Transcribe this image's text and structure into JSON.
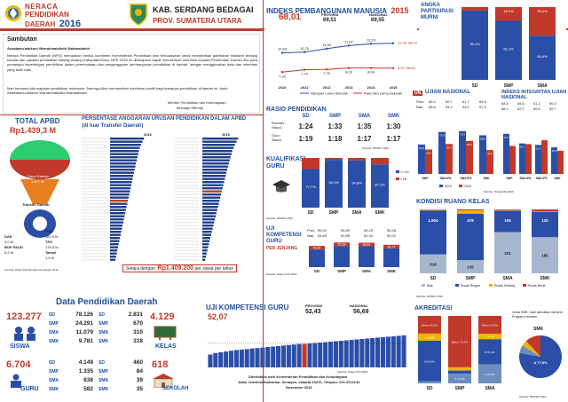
{
  "header": {
    "logo_text": "NERACA PENDIDIKAN DAERAH 2016",
    "logo_line1": "NERACA",
    "logo_line2": "PENDIDIKAN",
    "logo_line3": "DAERAH",
    "logo_year": "2016",
    "region": "KAB. SERDANG BEDAGAI",
    "province": "PROV. SUMATERA UTARA"
  },
  "sambutan": {
    "title": "Sambutan",
    "greeting": "Assalamu'alaikum Warrahmatullahi Wabarakatuh",
    "body": "Neraca Pendidikan Daerah (NPD) merupakan bentuk komitmen Kementerian Pendidikan dan Kebudayaan untuk memberikan gambaran mutakhir tentang kondisi dan capaian pendidikan masing-masing Kabupaten/Kota. NPD 2016 ini diharapkan dapat memberikan informasi kepada Pemerintah Daerah dan para pemangku kepentingan pendidikan dalam perencanaan dan penganggaran pembangunan pendidikan di daerah, dengan menggunakan data dan informasi yang lebih baik.",
    "closing": "Mari bersama kita majukan pendidikan Indonesia. Semoga Allah memberikan kontribusi positif bagi kemajuan pendidikan di daerah ini. Amin. Wassalamu'alaikum Warrahmatullahi Wabarakatuh",
    "signature_title": "Menteri Pendidikan dan Kebudayaan",
    "signature_name": "Muhadjir Effendy"
  },
  "ipm": {
    "title": "INDEKS PEMBANGUNAN MANUSIA",
    "year": "2015",
    "local_value": "68,01",
    "prov_label": "PROVINSI",
    "prov_value": "69,51",
    "nat_label": "NASIONAL",
    "nat_value": "69,55",
    "legend_harapan": "Harapan Lama Sekolah",
    "legend_rata": "Rata-rata Lama Sekolah",
    "target_harapan": "12,28 Tahun",
    "target_rata": "8,00 Tahun",
    "source": "Sumber: BPS 2015",
    "chart_data": {
      "type": "line",
      "x": [
        "2010",
        "2011",
        "2012",
        "2013",
        "2014",
        "2015"
      ],
      "series": [
        {
          "name": "Harapan Lama Sekolah",
          "values": [
            10.63,
            10.75,
            11.35,
            11.87,
            12.19,
            12.28
          ]
        },
        {
          "name": "Rata-rata Lama Sekolah",
          "values": [
            7.33,
            7.74,
            7.79,
            8.03,
            8.04,
            8.0
          ]
        }
      ],
      "labels_top": [
        "10,63",
        "10,75",
        "11,35",
        "11,87",
        "12,19"
      ],
      "labels_bottom": [
        "7,33",
        "7,74",
        "7,79",
        "8,03",
        "8,04"
      ]
    }
  },
  "apm": {
    "title": "ANGKA PARTISIPASI MURNI",
    "source": "Sumber: PDSPK 2016",
    "chart_data": {
      "type": "bar",
      "categories": [
        "SD",
        "SMP",
        "SMA"
      ],
      "series": [
        {
          "name": "APM",
          "values": [
            95.2,
            81.1,
            60.6
          ],
          "color": "#2b4fa8"
        },
        {
          "name": "Sisa",
          "values": [
            4.8,
            18.9,
            39.4
          ],
          "color": "#c0392b"
        }
      ],
      "labels": [
        "95,2%",
        "81,1%",
        "60,6%"
      ],
      "top_labels": [
        "",
        "18,9%",
        "39,4%"
      ]
    }
  },
  "total_apbd": {
    "title": "TOTAL APBD",
    "value": "Rp1.439,3 M",
    "transfer_label": "Transfer Daerah",
    "pad_label": "Dana Daerah",
    "pad_value": "178,7 M",
    "dak_label": "DAK",
    "dak_value": "0,0 M",
    "bop_label": "BOP PAUD",
    "bop_value": "6,2 M",
    "dau_label": "DAU",
    "dau_value": "181,6 M",
    "tpg_label": "TPG",
    "tpg_value": "176,5 M",
    "tamsil_label": "Tamsil",
    "tamsil_value": "1,5 M",
    "transfer_value": "385,9 M",
    "source": "Sumber: Ditjen Perimbangan Keuangan 2016"
  },
  "anggaran": {
    "title": "PERSENTASE ANGGARAN URUSAN PENDIDIKAN DALAM APBD",
    "subtitle": "(di luar Transfer Daerah)",
    "year_left": "2016",
    "year_right": "2015",
    "footer_pre": "Setara dengan:",
    "footer_value": "Rp1.409.200",
    "footer_post": "per siswa per tahun",
    "left_values": [
      28.7,
      27.4,
      26.2,
      25.1,
      24.3,
      23.8,
      23.2,
      22.6,
      21.9,
      21.4,
      20.8,
      20.2,
      19.6,
      19.1,
      18.5,
      18.0,
      17.4,
      16.9,
      16.3,
      15.7,
      15.1,
      14.6,
      14.0,
      13.4,
      12.9,
      12.3,
      11.7,
      11.2,
      10.6,
      10.1,
      9.5,
      9.0,
      8.4,
      7.9,
      7.3,
      6.8,
      6.2,
      5.7,
      5.1,
      4.5
    ],
    "right_values": [
      30.2,
      28.9,
      27.5,
      26.4,
      25.3,
      24.6,
      23.9,
      23.1,
      22.4,
      21.7,
      21.0,
      20.3,
      19.7,
      19.0,
      18.4,
      17.7,
      17.1,
      16.4,
      15.8,
      15.2,
      14.5,
      13.9,
      13.2,
      12.6,
      11.9,
      11.3,
      10.7,
      10.0,
      9.4,
      8.7,
      8.1,
      7.5,
      6.8,
      6.2,
      5.5,
      4.9,
      4.3,
      3.6,
      3.0,
      2.4
    ],
    "highlight_index_left": 20,
    "highlight_index_right": 17
  },
  "rasio": {
    "title": "RASIO PENDIDIKAN",
    "row1_label": "Rombel : Siswa",
    "row2_label": "Guru : Siswa",
    "levels": [
      "SD",
      "SMP",
      "SMA",
      "SMK"
    ],
    "row1": [
      "1:24",
      "1:33",
      "1:35",
      "1:30"
    ],
    "row2": [
      "1:19",
      "1:18",
      "1:17",
      "1:17"
    ],
    "source": "Sumber: PDSPK 2016"
  },
  "kualifikasi": {
    "title": "KUALIFIKASI GURU",
    "source": "Sumber: PDSPK 2016",
    "legend_lt": "< D4",
    "legend_ge": ">= D4",
    "chart_data": {
      "type": "bar",
      "categories": [
        "SD",
        "SMP",
        "SMA",
        "SMK"
      ],
      "series": [
        {
          "name": ">= D4",
          "values": [
            77.7,
            96.1,
            94.8,
            87.1
          ]
        },
        {
          "name": "< D4",
          "values": [
            22.3,
            3.9,
            5.2,
            12.9
          ]
        }
      ],
      "labels": [
        "77,7%",
        "96,1%",
        "94,8%",
        "87,1%"
      ]
    }
  },
  "ukg_jenjang": {
    "title": "UJI KOMPETENSI GURU",
    "subtitle": "PER JENJANG",
    "prov_label": "Prov.",
    "nas_label": "Nas.",
    "prov_values": [
      "55,00",
      "56,89",
      "54,29",
      "58,28"
    ],
    "nas_values": [
      "54,89",
      "61,68",
      "61,34",
      "52,02"
    ],
    "source": "Sumber: Ditjen GTK 2015",
    "chart_data": {
      "type": "bar",
      "categories": [
        "SD",
        "SMP",
        "SMA",
        "SMK"
      ],
      "values": [
        49.64,
        59.39,
        58.64,
        52.77
      ],
      "labels": [
        "49,64",
        "59,39",
        "58,64",
        "52,77"
      ]
    }
  },
  "un": {
    "title": "UJIAN NASIONAL",
    "tag": "UN",
    "prov_label": "Prov.",
    "nas_label": "Nas.",
    "prov_values": [
      "66,4",
      "69,7",
      "61,7",
      "64,6"
    ],
    "nas_values": [
      "58,6",
      "53,1",
      "54,0",
      "57,3"
    ],
    "source": "Sumber: Puspendik 2016",
    "legend_2015": "2015",
    "legend_2016": "2016",
    "chart_data": {
      "type": "bar",
      "categories": [
        "SMP",
        "SMA IPA",
        "SMA IPS",
        "SMK"
      ],
      "series": [
        {
          "name": "2015",
          "values": [
            51.8,
            73.9,
            75.4,
            68.0
          ]
        },
        {
          "name": "2016",
          "values": [
            43.0,
            52.7,
            58.2,
            42.0
          ]
        }
      ],
      "labels_2015": [
        "51,8",
        "73,9",
        "75,4",
        "68,0"
      ],
      "labels_2016": [
        "43,0",
        "52,7",
        "58,2",
        "42,0"
      ]
    }
  },
  "iiun": {
    "title": "INDEKS INTEGRITAS UJIAN NASIONAL",
    "prov_values": [
      "58,5",
      "55,6",
      "51,1",
      "50,3"
    ],
    "nas_values": [
      "68,1",
      "62,7",
      "60,0",
      "59,7"
    ],
    "prov_label": "Prov.",
    "nas_label": "Nas.",
    "chart_data": {
      "type": "bar",
      "categories": [
        "SMP",
        "SMA IPA",
        "SMA IPS",
        "SMK"
      ],
      "series": [
        {
          "name": "2015",
          "values": [
            70.6,
            53.7,
            51.0,
            46.8
          ]
        },
        {
          "name": "2016",
          "values": [
            49.4,
            52.5,
            59.4,
            40.8
          ]
        }
      ],
      "labels": [
        "70,6",
        "53,7",
        "51,0",
        "46,8"
      ]
    }
  },
  "ruang_kelas": {
    "title": "KONDISI RUANG KELAS",
    "source": "Sumber: PDSPK 2016",
    "legend_baik": "Baik",
    "legend_ringan": "Rusak Ringan",
    "legend_sedang": "Rusak Sedang",
    "legend_berat": "Rusak Berat",
    "chart_data": {
      "type": "bar",
      "categories": [
        "SD",
        "SMP",
        "SMA",
        "SMK"
      ],
      "series": [
        {
          "name": "Baik",
          "values": [
            818,
            135,
            201,
            185
          ]
        },
        {
          "name": "Rusak Ringan",
          "values": [
            1904,
            476,
            105,
            130
          ]
        },
        {
          "name": "Rusak Sedang",
          "values": [
            33,
            33,
            3,
            3
          ]
        },
        {
          "name": "Rusak Berat",
          "values": [
            10,
            10,
            3,
            9
          ]
        }
      ],
      "labels_top": [
        "1.904",
        "476",
        "105",
        "130"
      ],
      "labels_bottom": [
        "818",
        "135",
        "201",
        "185"
      ]
    }
  },
  "data_daerah": {
    "title": "Data Pendidikan Daerah",
    "siswa_total": "123.277",
    "siswa_label": "SISWA",
    "siswa_rows": [
      {
        "level": "SD",
        "value": "78.126"
      },
      {
        "level": "SMP",
        "value": "24.291"
      },
      {
        "level": "SMA",
        "value": "11.079"
      },
      {
        "level": "SMK",
        "value": "9.781"
      }
    ],
    "kelas_total": "4.129",
    "kelas_label": "KELAS",
    "kelas_rows": [
      {
        "level": "SD",
        "value": "2.831"
      },
      {
        "level": "SMP",
        "value": "670"
      },
      {
        "level": "SMA",
        "value": "310"
      },
      {
        "level": "SMK",
        "value": "318"
      }
    ],
    "guru_total": "6.704",
    "guru_label": "GURU",
    "guru_rows": [
      {
        "level": "SD",
        "value": "4.149"
      },
      {
        "level": "SMP",
        "value": "1.335"
      },
      {
        "level": "SMA",
        "value": "638"
      },
      {
        "level": "SMK",
        "value": "582"
      }
    ],
    "sekolah_total": "618",
    "sekolah_label": "SEKOLAH",
    "sekolah_rows": [
      {
        "level": "SD",
        "value": "460"
      },
      {
        "level": "SMP",
        "value": "84"
      },
      {
        "level": "SMA",
        "value": "39"
      },
      {
        "level": "SMK",
        "value": "35"
      }
    ]
  },
  "ukg": {
    "title": "UJI KOMPETENSI GURU",
    "local_value": "52,07",
    "prov_label": "PROVINSI",
    "prov_value": "52,43",
    "nas_label": "NASIONAL",
    "nas_value": "56,69",
    "source": "Sumber: Ditjen GTK 2015",
    "publisher_line1": "Diterbitkan oleh Kementerian Pendidikan dan Kebudayaan",
    "publisher_line2": "Jalan Jenderal Sudirman, Senayan, Jakarta 10270, Telepon: 021-5711144",
    "publisher_line3": "November 2016",
    "chart_data": {
      "type": "bar",
      "values": [
        45,
        46,
        46.5,
        47,
        47.5,
        48,
        48.3,
        48.6,
        49,
        49.3,
        49.6,
        50,
        50.3,
        50.6,
        51,
        51.3,
        51.6,
        52,
        52.07,
        52.3,
        52.6,
        52.9,
        53.2,
        53.5,
        53.8,
        54.1,
        54.4,
        54.7,
        55,
        55.3,
        55.6,
        55.9,
        56.2,
        56.5,
        56.8,
        57.1,
        57.4,
        57.7
      ],
      "highlight_index": 18
    }
  },
  "akreditasi": {
    "title": "AKREDITASI",
    "note": "Untuk SMK, hasil akreditasi menurut Program Keahlian",
    "source": "Sumber: BANSM 2016",
    "chart_data": {
      "type": "bar",
      "categories": [
        "SD",
        "SMP",
        "SMA"
      ],
      "series": [
        {
          "name": "Belum",
          "values": [
            26.2,
            76.2,
            26.3
          ]
        },
        {
          "name": "C",
          "values": [
            10.6,
            4.8,
            8.3
          ]
        },
        {
          "name": "B",
          "values": [
            60.0,
            4.8,
            37.4
          ]
        },
        {
          "name": "A",
          "values": [
            3.2,
            14.2,
            28.0
          ]
        }
      ],
      "labels": {
        "SD": [
          "Belum 26,2%",
          "C 10,6%",
          "B 60,0%",
          "A 3,2%"
        ],
        "SMP": [
          "Belum 76,2%",
          "C",
          "B",
          "A 14,2%"
        ],
        "SMA": [
          "Belum 26,3%",
          "C 8,3%",
          "B 37,4%",
          "A 28,0%"
        ]
      }
    },
    "smk_title": "SMK",
    "smk_pie": {
      "type": "pie",
      "categories": [
        "A",
        "B",
        "C",
        "Belum"
      ],
      "values": [
        77.9,
        6.0,
        4.3,
        11.8
      ],
      "labels": [
        "A 77,9%",
        "B",
        "C",
        "Belum"
      ]
    }
  },
  "colors": {
    "red": "#c0392b",
    "blue": "#2b4fa8",
    "darkblue": "#1f3f8a",
    "orange": "#e67e22",
    "gold": "#f0b400",
    "green": "#2ecc71",
    "grey": "#9aa5b1"
  }
}
